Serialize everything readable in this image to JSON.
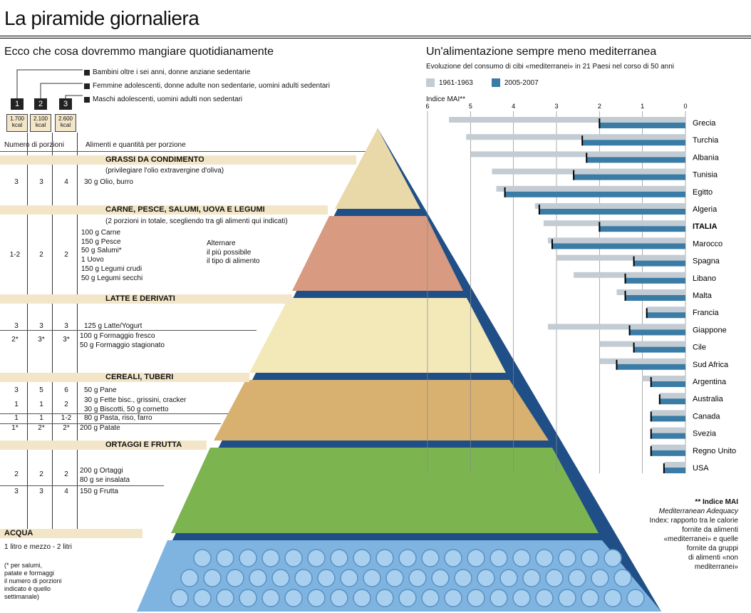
{
  "header": {
    "title": "La piramide giornaliera",
    "left_title": "Ecco che cosa dovremmo mangiare quotidianamente",
    "right_title": "Un'alimentazione sempre meno mediterranea",
    "right_subtitle": "Evoluzione del consumo di cibi «mediterranei» in 21 Paesi nel corso di 50 anni"
  },
  "profiles": [
    {
      "num": "1",
      "kcal": "1.700 kcal",
      "label": "Bambini oltre i sei anni, donne anziane sedentarie"
    },
    {
      "num": "2",
      "kcal": "2.100 kcal",
      "label": "Femmine adolescenti, donne adulte non sedentarie, uomini adulti sedentari"
    },
    {
      "num": "3",
      "kcal": "2.600 kcal",
      "label": "Maschi adolescenti, uomini adulti non sedentari"
    }
  ],
  "table_headers": {
    "portions": "Numero di porzioni",
    "foods": "Alimenti e quantità per porzione"
  },
  "groups": [
    {
      "title": "GRASSI DA CONDIMENTO",
      "note": "(privilegiare l'olio extravergine d'oliva)"
    },
    {
      "title": "CARNE, PESCE, SALUMI, UOVA E LEGUMI",
      "note": "(2 porzioni in totale, scegliendo tra gli alimenti qui indicati)"
    },
    {
      "title": "LATTE E DERIVATI",
      "note": ""
    },
    {
      "title": "CEREALI, TUBERI",
      "note": ""
    },
    {
      "title": "ORTAGGI E FRUTTA",
      "note": ""
    },
    {
      "title": "ACQUA",
      "note": "1 litro e mezzo - 2 litri"
    }
  ],
  "rows": {
    "grassi": {
      "p": [
        "3",
        "3",
        "4"
      ],
      "food": "30 g  Olio, burro"
    },
    "carne": {
      "p": [
        "1-2",
        "2",
        "2"
      ],
      "foods": [
        "100 g  Carne",
        "150 g  Pesce",
        "50 g  Salumi*",
        "1  Uovo",
        "150 g  Legumi crudi",
        "50 g  Legumi secchi"
      ],
      "aside": [
        "Alternare",
        "il più possibile",
        "il tipo di alimento"
      ]
    },
    "latte1": {
      "p": [
        "3",
        "3",
        "3"
      ],
      "food": "125 g  Latte/Yogurt"
    },
    "latte2": {
      "p": [
        "2*",
        "3*",
        "3*"
      ],
      "foods": [
        "100 g  Formaggio fresco",
        "50 g  Formaggio stagionato"
      ]
    },
    "cereali1": {
      "p": [
        "3",
        "5",
        "6"
      ],
      "food": "50 g  Pane"
    },
    "cereali2": {
      "p": [
        "1",
        "1",
        "2"
      ],
      "foods": [
        "30 g  Fette bisc., grissini, cracker",
        "30 g  Biscotti, 50 g cornetto"
      ]
    },
    "cereali3": {
      "p": [
        "1",
        "1",
        "1-2"
      ],
      "food": "80 g  Pasta, riso, farro"
    },
    "cereali4": {
      "p": [
        "1*",
        "2*",
        "2*"
      ],
      "food": "200 g  Patate"
    },
    "ortaggi": {
      "p": [
        "2",
        "2",
        "2"
      ],
      "foods": [
        "200 g  Ortaggi",
        "80 g  se insalata"
      ]
    },
    "frutta": {
      "p": [
        "3",
        "3",
        "4"
      ],
      "food": "150 g  Frutta"
    }
  },
  "footnote": [
    "(* per salumi,",
    "patate e formaggi",
    "il numero di porzioni",
    "indicato è quello",
    "settimanale)"
  ],
  "mai_note": {
    "head": "** Indice MAI",
    "body": [
      "Mediterranean Adequacy",
      "Index: rapporto tra le calorie",
      "fornite da alimenti",
      "«mediterranei» e quelle",
      "fornite da gruppi",
      "di alimenti «non",
      "mediterranei»"
    ]
  },
  "colors": {
    "series1": "#c3cbd3",
    "series2": "#3a7ca5",
    "band": "#f3e6c8",
    "pyramid_bg": "#1f4f86"
  },
  "chart_data": {
    "type": "bar",
    "orientation": "horizontal",
    "title": "Un'alimentazione sempre meno mediterranea",
    "xlabel": "Indice MAI**",
    "xlim": [
      6,
      0
    ],
    "xticks": [
      "6",
      "5",
      "4",
      "3",
      "2",
      "1",
      "0"
    ],
    "categories": [
      "Grecia",
      "Turchia",
      "Albania",
      "Tunisia",
      "Egitto",
      "Algeria",
      "ITALIA",
      "Marocco",
      "Spagna",
      "Libano",
      "Malta",
      "Francia",
      "Giappone",
      "Cile",
      "Sud Africa",
      "Argentina",
      "Australia",
      "Canada",
      "Svezia",
      "Regno Unito",
      "USA"
    ],
    "series": [
      {
        "name": "1961-1963",
        "values": [
          5.5,
          5.1,
          5.0,
          4.5,
          4.4,
          3.5,
          3.3,
          3.2,
          3.0,
          2.6,
          1.6,
          0.9,
          3.2,
          2.0,
          2.0,
          1.0,
          0.6,
          0.8,
          0.8,
          0.8,
          0.5
        ]
      },
      {
        "name": "2005-2007",
        "values": [
          2.0,
          2.4,
          2.3,
          2.6,
          4.2,
          3.4,
          2.0,
          3.1,
          1.2,
          1.4,
          1.4,
          0.9,
          1.3,
          1.2,
          1.6,
          0.8,
          0.6,
          0.8,
          0.8,
          0.8,
          0.5
        ]
      }
    ],
    "legend": "top-left",
    "grid": true
  }
}
